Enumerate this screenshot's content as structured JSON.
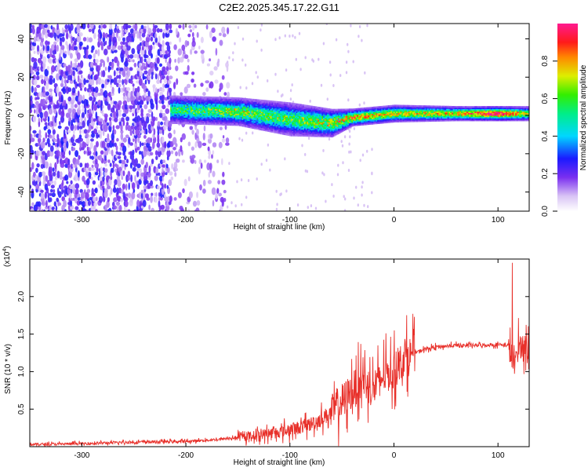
{
  "title": "C2E2.2025.345.17.22.G11",
  "chart_data": [
    {
      "type": "heatmap",
      "xlabel": "Height of straight line (km)",
      "ylabel": "Frequency (Hz)",
      "xlim": [
        -350,
        130
      ],
      "ylim": [
        -50,
        48
      ],
      "x_ticks": [
        "-300",
        "-200",
        "-100",
        "0",
        "100"
      ],
      "y_ticks": [
        "-40",
        "-20",
        "0",
        "20",
        "40"
      ],
      "colorbar": {
        "label": "Normalized spectral amplitude",
        "range": [
          0.0,
          1.0
        ],
        "ticks": [
          "0.0",
          "0.2",
          "0.4",
          "0.6",
          "0.8"
        ]
      },
      "ridge_profile": [
        {
          "x": -210,
          "y": 3,
          "halfwidth": 5,
          "peak": 0.45
        },
        {
          "x": -150,
          "y": 2,
          "halfwidth": 5,
          "peak": 0.55
        },
        {
          "x": -100,
          "y": -2,
          "halfwidth": 6,
          "peak": 0.5
        },
        {
          "x": -60,
          "y": -4,
          "halfwidth": 5,
          "peak": 0.6
        },
        {
          "x": -40,
          "y": -1,
          "halfwidth": 3,
          "peak": 0.75
        },
        {
          "x": 0,
          "y": 1,
          "halfwidth": 3,
          "peak": 0.65
        },
        {
          "x": 60,
          "y": 1,
          "halfwidth": 2.5,
          "peak": 0.7
        },
        {
          "x": 100,
          "y": 1,
          "halfwidth": 2.5,
          "peak": 0.95
        },
        {
          "x": 130,
          "y": 1,
          "halfwidth": 2.5,
          "peak": 0.6
        }
      ]
    },
    {
      "type": "line",
      "xlabel": "Height of straight line (km)",
      "ylabel": "SNR (10 * v/v)",
      "multiplier_label": "(x10",
      "multiplier_exp": "4",
      "xlim": [
        -350,
        130
      ],
      "ylim": [
        0,
        2.5
      ],
      "x_ticks": [
        "-300",
        "-200",
        "-100",
        "0",
        "100"
      ],
      "y_ticks": [
        "0.5",
        "1.0",
        "1.5",
        "2.0"
      ],
      "series": [
        {
          "color": "#e8302a",
          "x": [
            -350,
            -300,
            -250,
            -200,
            -175,
            -150,
            -125,
            -100,
            -80,
            -60,
            -50,
            -40,
            -30,
            -20,
            -10,
            0,
            10,
            20,
            30,
            40,
            60,
            80,
            100,
            110,
            115,
            120,
            130
          ],
          "y": [
            0.03,
            0.04,
            0.06,
            0.07,
            0.09,
            0.12,
            0.17,
            0.22,
            0.3,
            0.45,
            0.6,
            0.75,
            0.9,
            0.75,
            0.95,
            1.0,
            1.2,
            1.25,
            1.3,
            1.33,
            1.35,
            1.35,
            1.36,
            1.35,
            1.1,
            1.35,
            1.33
          ]
        }
      ]
    }
  ]
}
